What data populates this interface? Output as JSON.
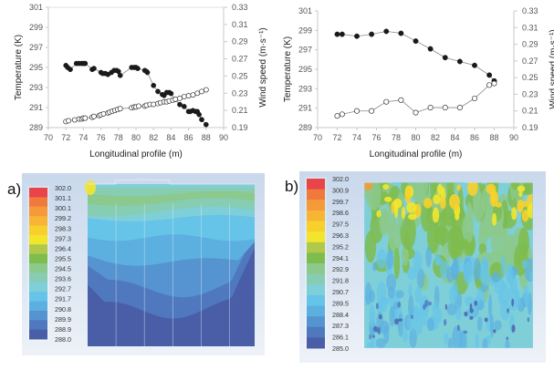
{
  "chart_data": [
    {
      "type": "scatter",
      "id": "line-chart-a",
      "title": "",
      "xlabel": "Longitudinal profile (m)",
      "ylabel": "Temperature (K)",
      "y2label": "Wind speed (m·s⁻¹)",
      "xlim": [
        70,
        90
      ],
      "ylim": [
        289,
        301
      ],
      "y2lim": [
        0.19,
        0.33
      ],
      "xticks": [
        "70",
        "72",
        "74",
        "76",
        "78",
        "80",
        "82",
        "84",
        "86",
        "88",
        "90"
      ],
      "yticks": [
        "289",
        "291",
        "293",
        "295",
        "297",
        "299",
        "301"
      ],
      "y2ticks": [
        "0.19",
        "0.21",
        "0.23",
        "0.25",
        "0.27",
        "0.29",
        "0.31",
        "0.33"
      ],
      "grid": false,
      "series": [
        {
          "name": "Temperature",
          "axis": "left",
          "marker": "filled-circle",
          "x": [
            72.0,
            72.2,
            72.5,
            73.2,
            73.5,
            73.8,
            74.0,
            74.2,
            75.0,
            75.2,
            76.0,
            76.2,
            76.5,
            76.8,
            77.2,
            77.5,
            77.8,
            78.0,
            78.2,
            79.5,
            79.8,
            80.0,
            80.2,
            81.0,
            81.2,
            81.3,
            82.0,
            82.5,
            83.0,
            83.2,
            83.5,
            83.8,
            84.0,
            84.5,
            85.0,
            85.5,
            86.0,
            86.2,
            86.5,
            86.8,
            87.0,
            87.2,
            87.5,
            88.0
          ],
          "y": [
            295.2,
            295.0,
            294.8,
            295.4,
            295.4,
            295.4,
            295.4,
            295.4,
            294.8,
            294.9,
            294.5,
            294.4,
            294.4,
            294.3,
            294.5,
            294.7,
            294.7,
            294.6,
            294.2,
            295.0,
            295.0,
            295.0,
            294.9,
            294.7,
            294.6,
            294.5,
            293.2,
            292.6,
            292.3,
            292.2,
            292.5,
            292.5,
            292.4,
            291.8,
            291.3,
            291.1,
            290.6,
            290.6,
            290.7,
            290.6,
            290.6,
            290.3,
            289.8,
            289.3
          ]
        },
        {
          "name": "Wind speed",
          "axis": "right",
          "marker": "open-circle",
          "x": [
            72.0,
            72.3,
            73.0,
            73.5,
            73.8,
            74.0,
            74.2,
            75.0,
            75.2,
            75.8,
            76.0,
            76.3,
            76.8,
            77.0,
            77.3,
            77.6,
            77.9,
            78.2,
            79.5,
            79.8,
            80.0,
            80.3,
            81.0,
            81.2,
            81.6,
            82.0,
            82.5,
            82.8,
            83.2,
            83.5,
            83.8,
            84.2,
            84.5,
            85.0,
            85.5,
            86.0,
            86.5,
            87.0,
            87.5,
            88.0
          ],
          "y": [
            0.197,
            0.198,
            0.199,
            0.2,
            0.2,
            0.201,
            0.201,
            0.202,
            0.203,
            0.204,
            0.205,
            0.206,
            0.207,
            0.208,
            0.209,
            0.21,
            0.211,
            0.212,
            0.213,
            0.214,
            0.214,
            0.215,
            0.215,
            0.216,
            0.217,
            0.217,
            0.218,
            0.219,
            0.22,
            0.22,
            0.221,
            0.222,
            0.223,
            0.224,
            0.226,
            0.227,
            0.228,
            0.23,
            0.232,
            0.234
          ]
        }
      ]
    },
    {
      "type": "line",
      "id": "line-chart-b",
      "title": "",
      "xlabel": "Longitudinal profile (m)",
      "ylabel": "Temperature (K)",
      "y2label": "Wind speed (m·s⁻¹)",
      "xlim": [
        70,
        90
      ],
      "ylim": [
        289,
        301
      ],
      "y2lim": [
        0.19,
        0.33
      ],
      "xticks": [
        "70",
        "72",
        "74",
        "76",
        "78",
        "80",
        "82",
        "84",
        "86",
        "88",
        "90"
      ],
      "yticks": [
        "289",
        "291",
        "293",
        "295",
        "297",
        "299",
        "301"
      ],
      "y2ticks": [
        "0.19",
        "0.21",
        "0.23",
        "0.25",
        "0.27",
        "0.29",
        "0.31",
        "0.33"
      ],
      "grid": false,
      "series": [
        {
          "name": "Temperature",
          "axis": "left",
          "marker": "filled-circle",
          "x": [
            72.0,
            72.5,
            74.0,
            75.5,
            77.0,
            78.5,
            80.0,
            81.5,
            83.0,
            84.5,
            86.0,
            87.5,
            88.0
          ],
          "y": [
            298.6,
            298.6,
            298.4,
            298.6,
            298.9,
            298.7,
            297.9,
            297.1,
            296.2,
            295.8,
            295.4,
            294.4,
            293.8
          ]
        },
        {
          "name": "Wind speed",
          "axis": "right",
          "marker": "open-circle",
          "x": [
            72.0,
            72.5,
            74.0,
            75.5,
            77.0,
            78.5,
            80.0,
            81.5,
            83.0,
            84.5,
            86.0,
            87.5,
            88.0
          ],
          "y": [
            0.204,
            0.206,
            0.21,
            0.21,
            0.221,
            0.223,
            0.208,
            0.214,
            0.214,
            0.214,
            0.225,
            0.241,
            0.243
          ]
        }
      ]
    },
    {
      "type": "heatmap",
      "id": "contour-a",
      "panel_label": "a)",
      "legend_values": [
        "302.0",
        "301.1",
        "300.1",
        "299.2",
        "298.3",
        "297.3",
        "296.4",
        "295.5",
        "294.5",
        "293.6",
        "292.7",
        "291.7",
        "290.8",
        "289.9",
        "288.9",
        "288.0"
      ],
      "legend_colors": [
        "#e8444a",
        "#f07a3c",
        "#f59a3a",
        "#f8b434",
        "#f7d02c",
        "#f3e52c",
        "#b0c94a",
        "#7fbc4e",
        "#8cc98c",
        "#86cdb4",
        "#7fcfd9",
        "#66c4e8",
        "#5cb0e0",
        "#5594d0",
        "#4f78bf",
        "#4a5ea8"
      ],
      "description": "Temperature contours; warm green/yellow band near top, cooling to dark blue at bottom"
    },
    {
      "type": "heatmap",
      "id": "contour-b",
      "panel_label": "b)",
      "legend_values": [
        "302.0",
        "300.9",
        "299.7",
        "298.6",
        "297.5",
        "296.3",
        "295.2",
        "294.1",
        "292.9",
        "291.8",
        "290.7",
        "289.5",
        "288.4",
        "287.3",
        "286.1",
        "285.0"
      ],
      "legend_colors": [
        "#e8444a",
        "#f07a3c",
        "#f59a3a",
        "#f8b434",
        "#f7d02c",
        "#f3e52c",
        "#b0c94a",
        "#7fbc4e",
        "#8cc98c",
        "#86cdb4",
        "#7fcfd9",
        "#66c4e8",
        "#5cb0e0",
        "#5594d0",
        "#4f78bf",
        "#4a5ea8"
      ],
      "description": "Temperature contours; yellow/green plumes at top, light blue mottled below with scattered dark spots"
    }
  ]
}
